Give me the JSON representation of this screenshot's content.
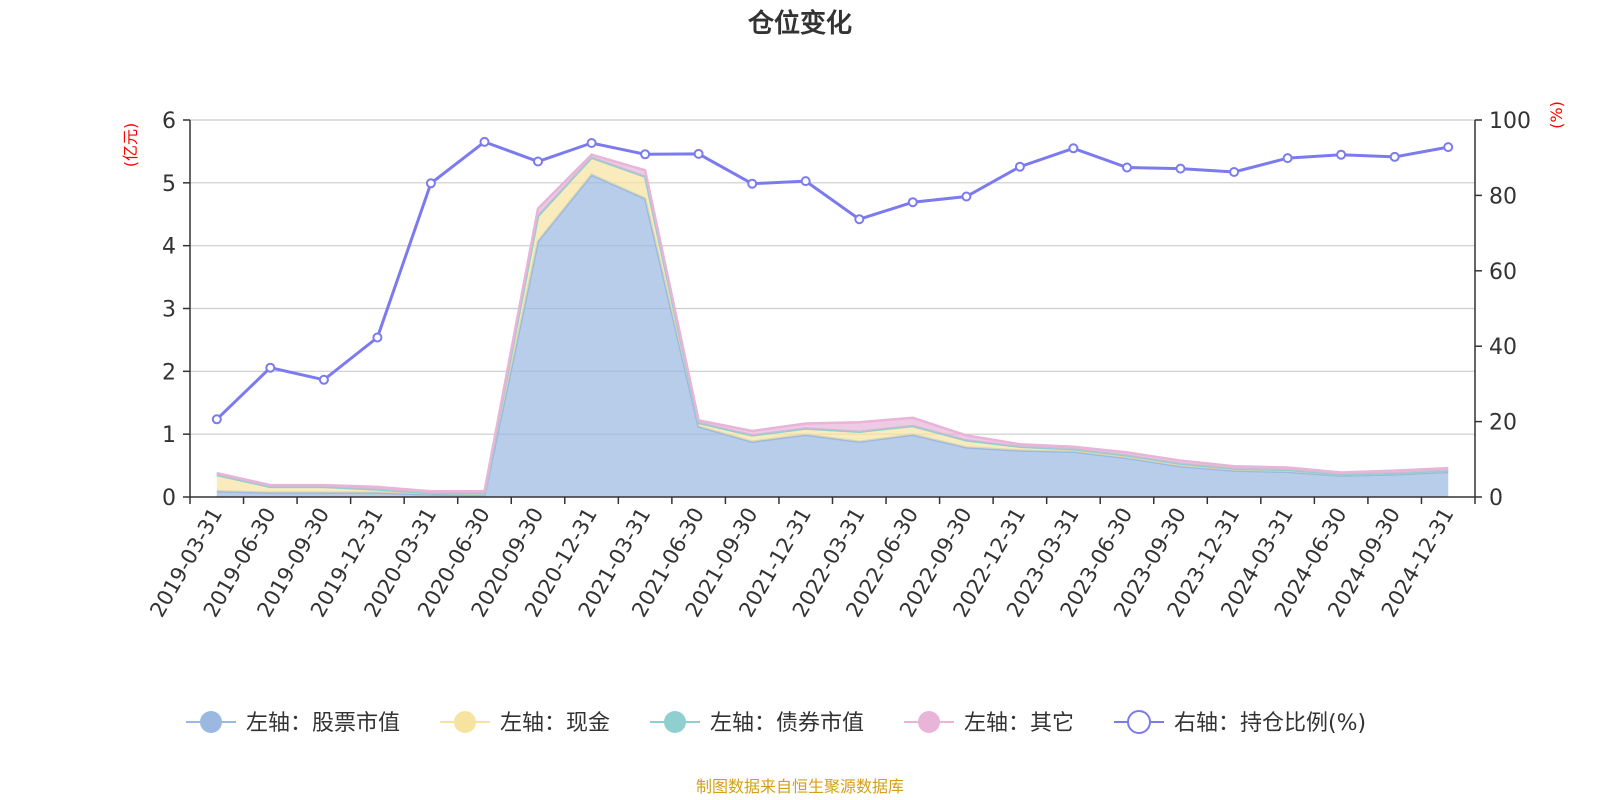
{
  "chart_data": {
    "type": "area",
    "title": "仓位变化",
    "left_unit": "(亿元)",
    "right_unit": "(%)",
    "x": [
      "2019-03-31",
      "2019-06-30",
      "2019-09-30",
      "2019-12-31",
      "2020-03-31",
      "2020-06-30",
      "2020-09-30",
      "2020-12-31",
      "2021-03-31",
      "2021-06-30",
      "2021-09-30",
      "2021-12-31",
      "2022-03-31",
      "2022-06-30",
      "2022-09-30",
      "2022-12-31",
      "2023-03-31",
      "2023-06-30",
      "2023-09-30",
      "2023-12-31",
      "2024-03-31",
      "2024-06-30",
      "2024-09-30",
      "2024-12-31"
    ],
    "left_ylim": [
      0,
      6
    ],
    "left_ticks": [
      "0",
      "1",
      "2",
      "3",
      "4",
      "5",
      "6"
    ],
    "right_ylim": [
      0,
      100
    ],
    "right_ticks": [
      "0",
      "20",
      "40",
      "60",
      "80",
      "100"
    ],
    "series": [
      {
        "name": "左轴：股票市值",
        "axis": "left",
        "stack": true,
        "color": "#9ab8e0",
        "values": [
          0.09,
          0.07,
          0.07,
          0.07,
          0.04,
          0.03,
          4.07,
          5.13,
          4.75,
          1.12,
          0.88,
          0.99,
          0.88,
          0.99,
          0.79,
          0.74,
          0.72,
          0.62,
          0.49,
          0.42,
          0.4,
          0.34,
          0.36,
          0.4
        ]
      },
      {
        "name": "左轴：现金",
        "axis": "left",
        "stack": true,
        "color": "#f7e3a0",
        "values": [
          0.26,
          0.09,
          0.09,
          0.05,
          0.02,
          0.03,
          0.4,
          0.27,
          0.35,
          0.06,
          0.1,
          0.1,
          0.16,
          0.14,
          0.11,
          0.06,
          0.04,
          0.04,
          0.04,
          0.03,
          0.03,
          0.02,
          0.02,
          0.02
        ]
      },
      {
        "name": "左轴：债券市值",
        "axis": "left",
        "stack": true,
        "color": "#8fcfcf",
        "values": [
          0,
          0,
          0,
          0,
          0,
          0,
          0,
          0,
          0,
          0,
          0,
          0,
          0,
          0,
          0,
          0,
          0,
          0,
          0,
          0,
          0,
          0,
          0,
          0
        ]
      },
      {
        "name": "左轴：其它",
        "axis": "left",
        "stack": true,
        "color": "#e8b4d8",
        "values": [
          0.03,
          0.03,
          0.03,
          0.04,
          0.03,
          0.03,
          0.12,
          0.05,
          0.1,
          0.04,
          0.07,
          0.08,
          0.15,
          0.13,
          0.08,
          0.04,
          0.04,
          0.05,
          0.05,
          0.04,
          0.04,
          0.03,
          0.04,
          0.04
        ]
      },
      {
        "name": "右轴：持仓比例(%)",
        "axis": "right",
        "stack": false,
        "color": "#7b7bef",
        "values": [
          20.6,
          34.3,
          31.1,
          42.3,
          83.2,
          94.2,
          89.0,
          93.9,
          90.9,
          91.0,
          83.1,
          83.8,
          73.7,
          78.2,
          79.7,
          87.6,
          92.5,
          87.4,
          87.1,
          86.2,
          89.9,
          90.8,
          90.2,
          92.8
        ]
      }
    ],
    "legend_position": "bottom",
    "grid": true
  },
  "footer": {
    "source": "制图数据来自恒生聚源数据库"
  }
}
